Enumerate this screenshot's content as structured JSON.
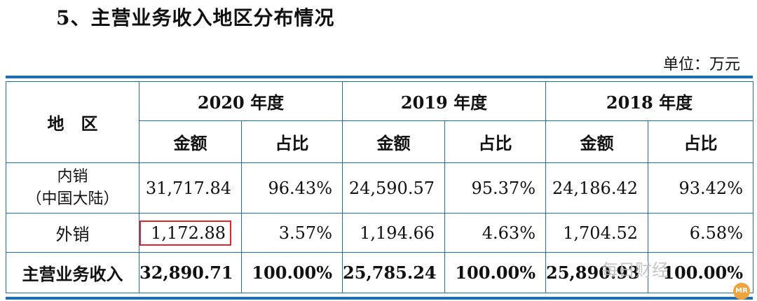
{
  "heading": "5、主营业务收入地区分布情况",
  "unit": "单位：万元",
  "table": {
    "region_header": "地　区",
    "years": [
      "2020 年度",
      "2019 年度",
      "2018 年度"
    ],
    "sub_headers": {
      "amount": "金额",
      "ratio": "占比"
    },
    "rows": [
      {
        "region_line1": "内销",
        "region_line2": "（中国大陆）",
        "values": [
          "31,717.84",
          "96.43%",
          "24,590.57",
          "95.37%",
          "24,186.42",
          "93.42%"
        ]
      },
      {
        "region": "外销",
        "values": [
          "1,172.88",
          "3.57%",
          "1,194.66",
          "4.63%",
          "1,704.52",
          "6.58%"
        ]
      }
    ],
    "total": {
      "label": "主营业务收入",
      "values": [
        "32,890.71",
        "100.00%",
        "25,785.24",
        "100.00%",
        "25,890.93",
        "100.00%"
      ]
    }
  },
  "watermark": "每日财经",
  "watermark_logo": "MR"
}
